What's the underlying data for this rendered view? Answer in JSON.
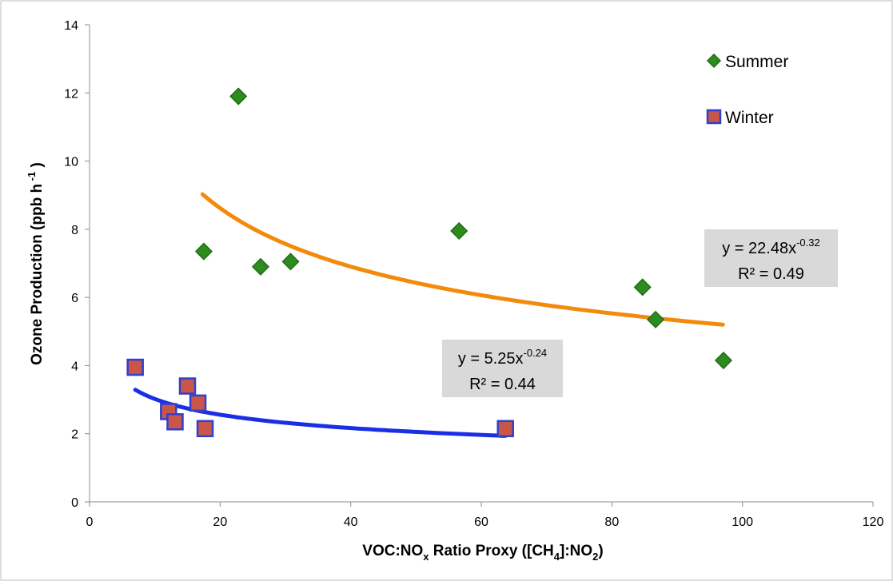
{
  "chart_data": {
    "type": "scatter",
    "xlabel_parts": {
      "a": "VOC:NO",
      "a_sub": "x",
      "b": " Ratio Proxy ([CH",
      "b_sub": "4",
      "c": "]:NO",
      "c_sub": "2",
      "d": ")"
    },
    "ylabel_parts": {
      "a": "Ozone Production  (ppb h",
      "sup": " -1",
      "b": " )"
    },
    "xlim": [
      0,
      120
    ],
    "ylim": [
      0,
      14
    ],
    "x_ticks": [
      0,
      20,
      40,
      60,
      80,
      100,
      120
    ],
    "y_ticks": [
      0,
      2,
      4,
      6,
      8,
      10,
      12,
      14
    ],
    "grid": false,
    "legend_position": "top-right",
    "series": [
      {
        "name": "Summer",
        "marker": "diamond",
        "color": "#2e8b1e",
        "edge_color": "#1f6e15",
        "points": [
          {
            "x": 22.8,
            "y": 11.9
          },
          {
            "x": 17.5,
            "y": 7.35
          },
          {
            "x": 26.2,
            "y": 6.9
          },
          {
            "x": 30.8,
            "y": 7.05
          },
          {
            "x": 56.6,
            "y": 7.95
          },
          {
            "x": 84.7,
            "y": 6.3
          },
          {
            "x": 86.7,
            "y": 5.35
          },
          {
            "x": 97.1,
            "y": 4.15
          }
        ],
        "fit": {
          "color": "#f28a0c",
          "a": 22.48,
          "b": -0.32,
          "x_range": [
            17.3,
            97.0
          ],
          "equation_prefix": "y = 22.48x",
          "equation_exp": "-0.32",
          "r2": "R² = 0.49"
        }
      },
      {
        "name": "Winter",
        "marker": "square",
        "color": "#c8574a",
        "edge_color": "#2f3fd0",
        "points": [
          {
            "x": 7.0,
            "y": 3.95
          },
          {
            "x": 12.1,
            "y": 2.65
          },
          {
            "x": 13.1,
            "y": 2.35
          },
          {
            "x": 15.0,
            "y": 3.4
          },
          {
            "x": 16.6,
            "y": 2.9
          },
          {
            "x": 17.7,
            "y": 2.15
          },
          {
            "x": 63.7,
            "y": 2.15
          }
        ],
        "fit": {
          "color": "#1a2ee6",
          "a": 5.25,
          "b": -0.24,
          "x_range": [
            7.0,
            63.7
          ],
          "equation_prefix": "y = 5.25x",
          "equation_exp": "-0.24",
          "r2": "R² = 0.44"
        }
      }
    ]
  }
}
